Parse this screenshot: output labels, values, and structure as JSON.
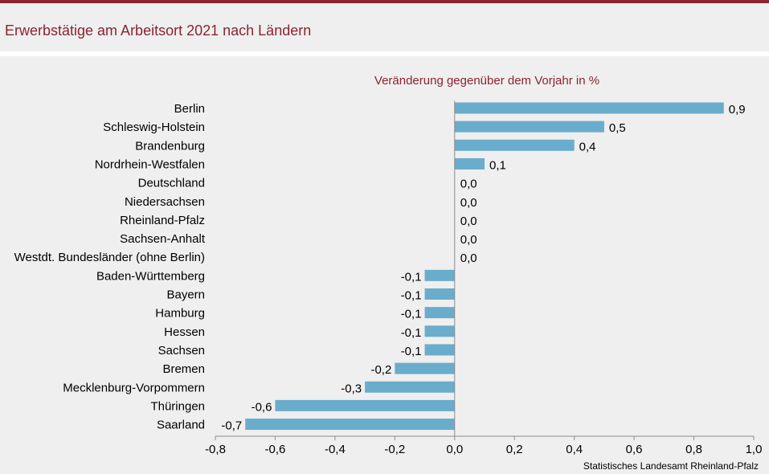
{
  "header": {
    "title": "Erwerbstätige am Arbeitsort 2021 nach Ländern",
    "accent_color": "#8b2332"
  },
  "source": "Statistisches Landesamt  Rheinland-Pfalz",
  "chart_data": {
    "type": "bar",
    "orientation": "horizontal",
    "title": "Veränderung gegenüber dem Vorjahr in %",
    "xlabel": "",
    "ylabel": "",
    "xlim": [
      -0.8,
      1.0
    ],
    "ticks": [
      -0.8,
      -0.6,
      -0.4,
      -0.2,
      0.0,
      0.2,
      0.4,
      0.6,
      0.8,
      1.0
    ],
    "tick_labels": [
      "-0,8",
      "-0,6",
      "-0,4",
      "-0,2",
      "0,0",
      "0,2",
      "0,4",
      "0,6",
      "0,8",
      "1,0"
    ],
    "bar_color": "#6aaccc",
    "grid": false,
    "categories": [
      "Berlin",
      "Schleswig-Holstein",
      "Brandenburg",
      "Nordrhein-Westfalen",
      "Deutschland",
      "Niedersachsen",
      "Rheinland-Pfalz",
      "Sachsen-Anhalt",
      "Westdt. Bundesländer (ohne Berlin)",
      "Baden-Württemberg",
      "Bayern",
      "Hamburg",
      "Hessen",
      "Sachsen",
      "Bremen",
      "Mecklenburg-Vorpommern",
      "Thüringen",
      "Saarland"
    ],
    "values": [
      0.9,
      0.5,
      0.4,
      0.1,
      0.0,
      0.0,
      0.0,
      0.0,
      0.0,
      -0.1,
      -0.1,
      -0.1,
      -0.1,
      -0.1,
      -0.2,
      -0.3,
      -0.6,
      -0.7
    ],
    "value_labels": [
      "0,9",
      "0,5",
      "0,4",
      "0,1",
      "0,0",
      "0,0",
      "0,0",
      "0,0",
      "0,0",
      "-0,1",
      "-0,1",
      "-0,1",
      "-0,1",
      "-0,1",
      "-0,2",
      "-0,3",
      "-0,6",
      "-0,7"
    ]
  }
}
